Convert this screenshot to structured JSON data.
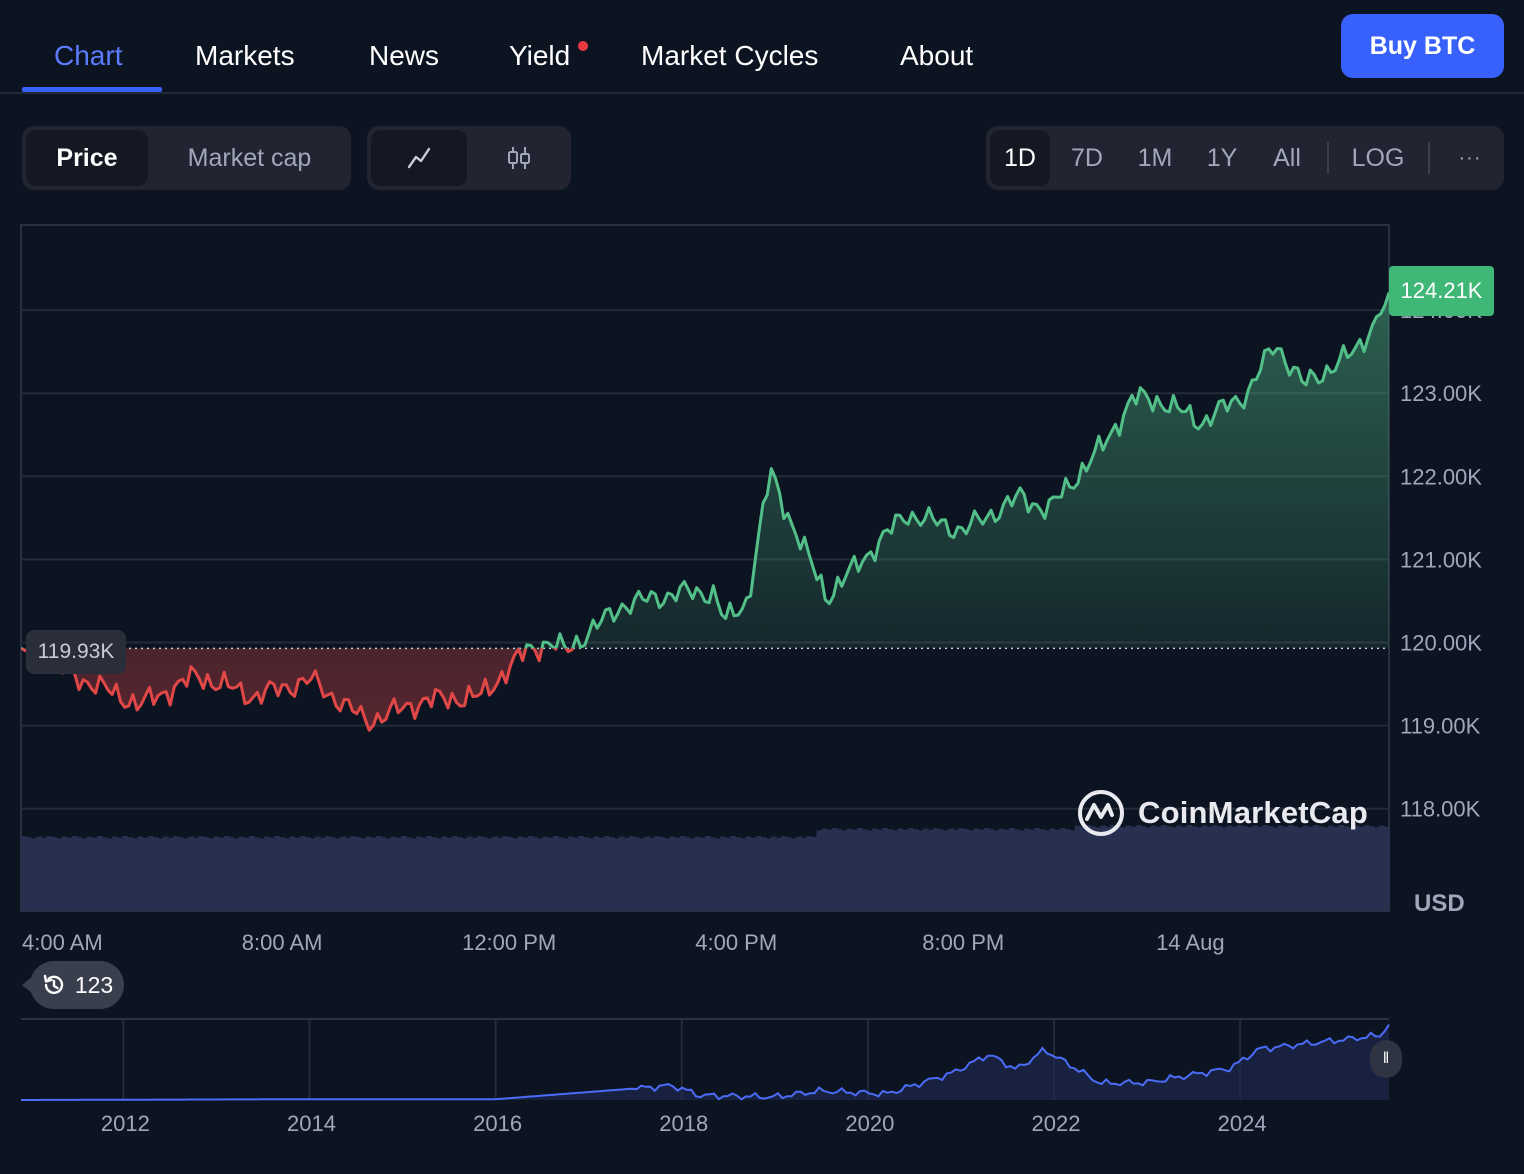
{
  "tabs": [
    {
      "label": "Chart",
      "active": true
    },
    {
      "label": "Markets",
      "active": false
    },
    {
      "label": "News",
      "active": false
    },
    {
      "label": "Yield",
      "active": false,
      "dot": true
    },
    {
      "label": "Market Cycles",
      "active": false
    },
    {
      "label": "About",
      "active": false
    }
  ],
  "buy_button": "Buy BTC",
  "metric_toggle": {
    "price": "Price",
    "market_cap": "Market cap",
    "selected": "Price"
  },
  "chart_style_toggle": {
    "line_icon": "line-chart-icon",
    "candle_icon": "candlestick-icon",
    "selected": "line"
  },
  "ranges": [
    "1D",
    "7D",
    "1M",
    "1Y",
    "All"
  ],
  "selected_range": "1D",
  "log_label": "LOG",
  "more_label": "···",
  "currency_label": "USD",
  "current_price_label": "124.21K",
  "open_price_label": "119.93K",
  "watermark": "CoinMarketCap",
  "history": {
    "label": "123",
    "icon": "history-icon"
  },
  "colors": {
    "up": "#53c08a",
    "down": "#e04848",
    "accent": "#3861fb",
    "volume": "#27304f",
    "navigator_line": "#4a6cf7"
  },
  "chart_data": {
    "type": "line",
    "series": [
      {
        "x": [
          "4:00 AM",
          "8:00 AM",
          "12:00 PM",
          "4:00 PM",
          "8:00 PM",
          "14 Aug"
        ]
      }
    ],
    "y_ticks": [
      "124.00K",
      "123.00K",
      "122.00K",
      "121.00K",
      "120.00K",
      "119.00K",
      "118.00K"
    ],
    "x_ticks": [
      "4:00 AM",
      "8:00 AM",
      "12:00 PM",
      "4:00 PM",
      "8:00 PM",
      "14 Aug"
    ],
    "x_hours": [
      3.4,
      4.5,
      5.5,
      6.5,
      7.5,
      8.5,
      9.5,
      10.5,
      11.5,
      12.3,
      12.7,
      13.0,
      14.0,
      15.0,
      15.6,
      15.8,
      16.2,
      16.6,
      17.0,
      17.6,
      18.3,
      19.0,
      20.0,
      21.0,
      21.5,
      22.5,
      23.0,
      23.5,
      24.2,
      25.0,
      25.5,
      26.0,
      26.9,
      27.4,
      27.5
    ],
    "price": [
      119.93,
      119.55,
      119.25,
      119.6,
      119.35,
      119.55,
      119.05,
      119.3,
      119.35,
      119.9,
      120.0,
      119.9,
      120.45,
      120.6,
      120.6,
      120.25,
      120.5,
      122.05,
      121.4,
      120.55,
      121.05,
      121.55,
      121.35,
      121.75,
      121.6,
      122.4,
      122.95,
      122.9,
      122.65,
      123.0,
      123.6,
      123.1,
      123.5,
      124.0,
      124.21
    ],
    "open": 119.93,
    "y_range": [
      117.5,
      125.0
    ],
    "navigator": {
      "x_ticks": [
        "2012",
        "2014",
        "2016",
        "2018",
        "2020",
        "2022",
        "2024"
      ],
      "years": [
        2010.9,
        2013.9,
        2016.0,
        2017.9,
        2018.2,
        2019.0,
        2019.5,
        2020.2,
        2020.9,
        2021.3,
        2021.6,
        2021.9,
        2022.5,
        2023.0,
        2023.9,
        2024.2,
        2025.0,
        2025.5,
        2025.6
      ],
      "values": [
        0,
        0.01,
        0.01,
        0.19,
        0.06,
        0.04,
        0.12,
        0.08,
        0.35,
        0.6,
        0.4,
        0.66,
        0.22,
        0.23,
        0.42,
        0.67,
        0.78,
        0.85,
        0.99
      ]
    },
    "grid": true,
    "volume_bars": true
  }
}
